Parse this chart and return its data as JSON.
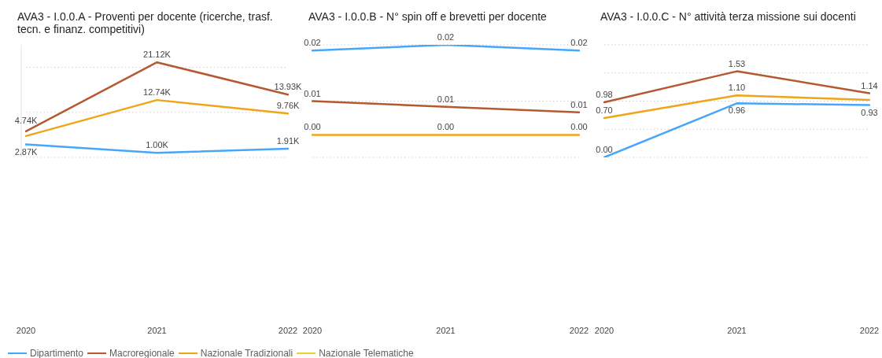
{
  "chart_data": [
    {
      "type": "line",
      "title": "AVA3 - I.0.0.A - Proventi per docente (ricerche, trasf. tecn. e finanz. competitivi)",
      "categories": [
        "2020",
        "2021",
        "2022"
      ],
      "series": [
        {
          "name": "Dipartimento",
          "color": "#48a6fa",
          "values": [
            2870,
            1000,
            1910
          ],
          "value_labels": [
            "2.87K",
            "1.00K",
            "1.91K"
          ]
        },
        {
          "name": "Macroregionale",
          "color": "#b55a30",
          "values": [
            5800,
            21120,
            13930
          ],
          "value_labels": [
            null,
            "21.12K",
            "13.93K"
          ]
        },
        {
          "name": "Nazionale Tradizionali",
          "color": "#f0a418",
          "values": [
            4740,
            12740,
            9760
          ],
          "value_labels": [
            "4.74K",
            "12.74K",
            "9.76K"
          ]
        },
        {
          "name": "Nazionale Telematiche",
          "color": "#e8d42a",
          "values": [
            null,
            null,
            null
          ]
        }
      ],
      "ylim": [
        0,
        25000
      ],
      "yticks": [
        {
          "value": 0,
          "label": null
        },
        {
          "value": 10000,
          "label": null
        },
        {
          "value": 20000,
          "label": null
        }
      ],
      "grid": "y",
      "tick_labels": "x",
      "legend": "bottom"
    },
    {
      "type": "line",
      "title": "AVA3 - I.0.0.B - N° spin off e brevetti per docente",
      "categories": [
        "2020",
        "2021",
        "2022"
      ],
      "series": [
        {
          "color": "#48a6fa",
          "values": [
            0.019,
            0.02,
            0.019
          ],
          "value_labels": [
            "0.02",
            "0.02",
            "0.02"
          ]
        },
        {
          "color": "#b55a30",
          "values": [
            0.01,
            0.009,
            0.008
          ],
          "value_labels": [
            "0.01",
            "0.01",
            "0.01"
          ]
        },
        {
          "color": "#f0a418",
          "values": [
            0.004,
            0.004,
            0.004
          ],
          "value_labels": [
            "0.00",
            "0.00",
            "0.00"
          ]
        },
        {
          "color": "#e8d42a",
          "values": [
            null,
            null,
            null
          ]
        }
      ],
      "ylim": [
        0,
        0.02
      ],
      "yticks": [
        {
          "value": 0,
          "label": null
        },
        {
          "value": 0.01,
          "label": null
        },
        {
          "value": 0.02,
          "label": null
        }
      ],
      "grid": "y",
      "tick_labels": "x"
    },
    {
      "type": "line",
      "title": "AVA3 - I.0.0.C - N° attività terza missione sui docenti",
      "categories": [
        "2020",
        "2021",
        "2022"
      ],
      "series": [
        {
          "color": "#48a6fa",
          "values": [
            0,
            0.96,
            0.93
          ],
          "value_labels": [
            "0.00",
            "0.96",
            "0.93"
          ]
        },
        {
          "color": "#b55a30",
          "values": [
            0.98,
            1.53,
            1.14
          ],
          "value_labels": [
            "0.98",
            "1.53",
            "1.14"
          ]
        },
        {
          "color": "#f0a418",
          "values": [
            0.7,
            1.1,
            1.02
          ],
          "value_labels": [
            "0.70",
            "1.10",
            null
          ]
        },
        {
          "color": "#e8d42a",
          "values": [
            null,
            null,
            null
          ]
        }
      ],
      "ylim": [
        0,
        2
      ],
      "yticks": [
        {
          "value": 0,
          "label": null
        },
        {
          "value": 0.5,
          "label": null
        },
        {
          "value": 1,
          "label": null
        },
        {
          "value": 1.5,
          "label": null
        },
        {
          "value": 2,
          "label": null
        }
      ],
      "grid": "y",
      "tick_labels": "x"
    }
  ]
}
